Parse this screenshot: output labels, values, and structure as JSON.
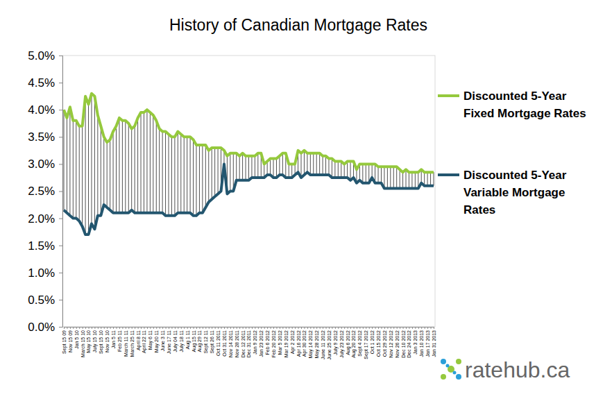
{
  "chart_data": {
    "type": "line",
    "title": "History of Canadian Mortgage Rates",
    "categories": [
      "Sept 15 09",
      null,
      "Nov 15 09",
      null,
      "Jan 5 10",
      null,
      "March 15 10",
      null,
      "May 15 10",
      null,
      "July 15 10",
      null,
      "Sept 15 10",
      null,
      "Nov 15 10",
      null,
      "Jan 5 11",
      null,
      "Feb 25 11",
      null,
      "March 11 11",
      null,
      "March 25 11",
      null,
      "April 8 11",
      null,
      "April 22 11",
      null,
      "May 6 11",
      null,
      "May 20 11",
      null,
      "June 3 11",
      null,
      "June 17 11",
      null,
      "July 04 11",
      null,
      "July 18 11",
      null,
      "Aug 1 11",
      null,
      "Aug 15 11",
      null,
      "Aug 29 11",
      null,
      "Sept 12 11",
      null,
      "Sept 26 11",
      null,
      "Oct 11 2011",
      null,
      "Oct 31 2011",
      null,
      "Nov 14 2011",
      null,
      "Nov 28 2011",
      null,
      "Dec 12 2011",
      null,
      "Dec 31 2011",
      null,
      "Jan 9 2012",
      null,
      "Jan 23 2012",
      null,
      "Feb 6 2012",
      null,
      "Feb 20 2012",
      null,
      "Mar 5 2012",
      null,
      "Mar 19 2012",
      null,
      "Apr 2 2012",
      null,
      "Apr 16 2012",
      null,
      "Apr 30 2012",
      null,
      "May 14 2012",
      null,
      "May 28 2012",
      null,
      "June 11 2012",
      null,
      "June 25 2012",
      null,
      "July 9 2012",
      null,
      "July 23 2012",
      null,
      "Aug 6 2012",
      null,
      "Aug 20 2012",
      null,
      "Sept 4 2012",
      null,
      "Sept 17 2012",
      null,
      "Oct 1 2012",
      null,
      "Oct 15 2012",
      null,
      "Oct 29 2012",
      null,
      "Nov 12 2012",
      null,
      "Nov 26 2012",
      null,
      "Dec 10 2012",
      null,
      "Dec 24 2012",
      null,
      "Jan 3 2013",
      null,
      "Jan 10 2013",
      null,
      "Jan 17 2013",
      null,
      "Jan 31 2013"
    ],
    "series": [
      {
        "name": "Discounted 5-Year Fixed Mortgage Rates",
        "color": "#95c93d",
        "values": [
          4.0,
          3.85,
          4.05,
          3.8,
          3.8,
          3.7,
          3.7,
          4.25,
          4.1,
          4.3,
          4.25,
          3.9,
          3.7,
          3.5,
          3.4,
          3.45,
          3.6,
          3.7,
          3.85,
          3.8,
          3.8,
          3.75,
          3.65,
          3.7,
          3.85,
          3.95,
          3.95,
          4.0,
          3.95,
          3.9,
          3.8,
          3.65,
          3.6,
          3.6,
          3.55,
          3.5,
          3.5,
          3.6,
          3.55,
          3.5,
          3.5,
          3.5,
          3.45,
          3.35,
          3.35,
          3.35,
          3.35,
          3.25,
          3.3,
          3.3,
          3.3,
          3.3,
          3.25,
          3.15,
          3.2,
          3.2,
          3.2,
          3.15,
          3.2,
          3.15,
          3.15,
          3.15,
          3.15,
          3.2,
          3.2,
          3.0,
          3.05,
          3.1,
          3.1,
          3.1,
          3.15,
          3.2,
          3.2,
          3.0,
          3.0,
          3.0,
          3.25,
          3.2,
          3.25,
          3.2,
          3.2,
          3.2,
          3.2,
          3.2,
          3.15,
          3.15,
          3.1,
          3.1,
          3.05,
          3.05,
          3.05,
          3.0,
          3.05,
          3.05,
          3.05,
          2.9,
          3.0,
          3.0,
          3.0,
          3.0,
          3.0,
          3.0,
          2.95,
          2.95,
          2.95,
          2.95,
          2.95,
          2.95,
          2.95,
          2.9,
          2.85,
          2.9,
          2.85,
          2.85,
          2.85,
          2.85,
          2.9,
          2.85,
          2.85,
          2.85,
          2.85
        ]
      },
      {
        "name": "Discounted 5-Year Variable Mortgage Rates",
        "color": "#23566f",
        "values": [
          2.15,
          2.1,
          2.05,
          2.0,
          2.0,
          1.95,
          1.85,
          1.7,
          1.7,
          1.9,
          1.8,
          2.05,
          2.05,
          2.25,
          2.2,
          2.15,
          2.1,
          2.1,
          2.1,
          2.1,
          2.1,
          2.1,
          2.15,
          2.1,
          2.1,
          2.1,
          2.1,
          2.1,
          2.1,
          2.1,
          2.1,
          2.1,
          2.1,
          2.05,
          2.05,
          2.05,
          2.05,
          2.1,
          2.1,
          2.1,
          2.1,
          2.1,
          2.05,
          2.05,
          2.1,
          2.1,
          2.2,
          2.3,
          2.35,
          2.4,
          2.45,
          2.5,
          3.0,
          2.45,
          2.5,
          2.5,
          2.7,
          2.7,
          2.7,
          2.7,
          2.7,
          2.75,
          2.75,
          2.75,
          2.75,
          2.75,
          2.8,
          2.8,
          2.75,
          2.75,
          2.8,
          2.8,
          2.75,
          2.75,
          2.75,
          2.8,
          2.85,
          2.75,
          2.8,
          2.85,
          2.8,
          2.8,
          2.8,
          2.8,
          2.8,
          2.8,
          2.8,
          2.75,
          2.75,
          2.75,
          2.75,
          2.75,
          2.75,
          2.7,
          2.75,
          2.65,
          2.7,
          2.65,
          2.65,
          2.65,
          2.75,
          2.65,
          2.65,
          2.65,
          2.55,
          2.55,
          2.55,
          2.55,
          2.55,
          2.55,
          2.55,
          2.55,
          2.55,
          2.55,
          2.55,
          2.55,
          2.65,
          2.6,
          2.6,
          2.6,
          2.6
        ]
      }
    ],
    "ylim": [
      0,
      5
    ],
    "yticks": [
      {
        "value": 0,
        "label": "0.0%"
      },
      {
        "value": 0.5,
        "label": "0.5%"
      },
      {
        "value": 1,
        "label": "1.0%"
      },
      {
        "value": 1.5,
        "label": "1.5%"
      },
      {
        "value": 2,
        "label": "2.0%"
      },
      {
        "value": 2.5,
        "label": "2.5%"
      },
      {
        "value": 3,
        "label": "3.0%"
      },
      {
        "value": 3.5,
        "label": "3.5%"
      },
      {
        "value": 4,
        "label": "4.0%"
      },
      {
        "value": 4.5,
        "label": "4.5%"
      },
      {
        "value": 5,
        "label": "5.0%"
      }
    ],
    "grid": false,
    "legend": "right",
    "annotations": [
      "ratehub.ca"
    ]
  }
}
